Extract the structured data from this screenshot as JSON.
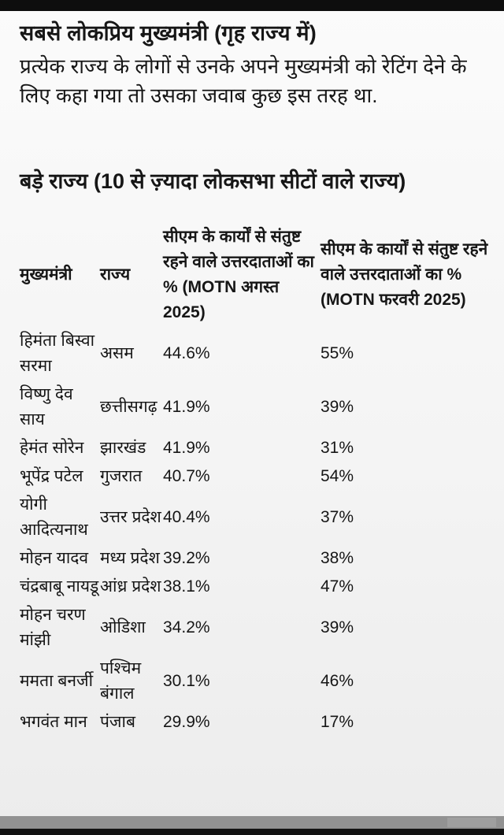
{
  "page": {
    "title": "सबसे लोकप्रिय मुख्यमंत्री (गृह राज्य में)",
    "subtitle": "प्रत्येक राज्य के लोगों से उनके अपने मुख्यमंत्री को रेटिंग देने के लिए कहा गया तो उसका जवाब कुछ इस तरह था.",
    "section_heading": "बड़े राज्य (10 से ज़्यादा लोकसभा सीटों वाले राज्य)"
  },
  "table": {
    "columns": [
      "मुख्यमंत्री",
      "राज्य",
      "सीएम के कार्यों से संतुष्ट रहने वाले उत्तरदाताओं का % (MOTN अगस्त 2025)",
      "सीएम के कार्यों से संतुष्ट रहने वाले उत्तरदाताओं का % (MOTN फरवरी 2025)"
    ],
    "rows": [
      {
        "cm": "हिमंता बिस्वा सरमा",
        "state": "असम",
        "aug_2025": "44.6%",
        "feb_2025": "55%"
      },
      {
        "cm": "विष्णु देव साय",
        "state": "छत्तीसगढ़",
        "aug_2025": "41.9%",
        "feb_2025": "39%"
      },
      {
        "cm": "हेमंत सोरेन",
        "state": "झारखंड",
        "aug_2025": "41.9%",
        "feb_2025": "31%"
      },
      {
        "cm": "भूपेंद्र पटेल",
        "state": "गुजरात",
        "aug_2025": "40.7%",
        "feb_2025": "54%"
      },
      {
        "cm": "योगी आदित्यनाथ",
        "state": "उत्तर प्रदेश",
        "aug_2025": "40.4%",
        "feb_2025": "37%"
      },
      {
        "cm": "मोहन यादव",
        "state": "मध्य प्रदेश",
        "aug_2025": "39.2%",
        "feb_2025": "38%"
      },
      {
        "cm": "चंद्रबाबू नायडू",
        "state": "आंध्र प्रदेश",
        "aug_2025": "38.1%",
        "feb_2025": "47%"
      },
      {
        "cm": "मोहन चरण मांझी",
        "state": "ओडिशा",
        "aug_2025": "34.2%",
        "feb_2025": "39%"
      },
      {
        "cm": "ममता बनर्जी",
        "state": "पश्चिम बंगाल",
        "aug_2025": "30.1%",
        "feb_2025": "46%"
      },
      {
        "cm": "भगवंत मान",
        "state": "पंजाब",
        "aug_2025": "29.9%",
        "feb_2025": "17%"
      }
    ]
  },
  "colors": {
    "top_bar": "#0e0e0e",
    "bottom_bar": "#121212",
    "overlay_band_gray": "#7c7c7c",
    "background": "#f4f4f4",
    "text": "#161616"
  }
}
